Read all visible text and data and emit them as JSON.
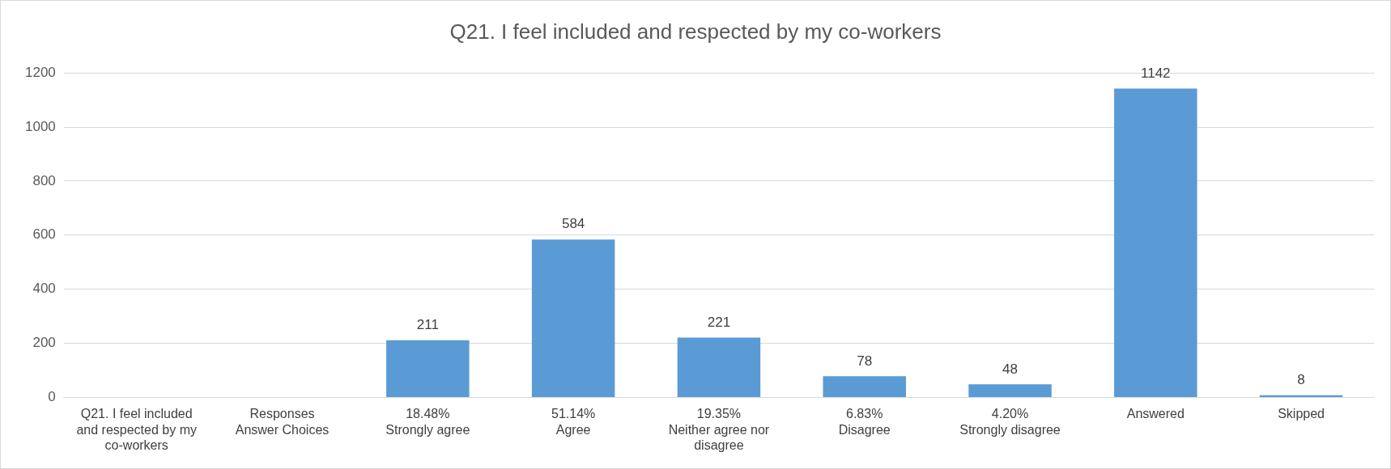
{
  "chart_data": {
    "type": "bar",
    "title": "Q21. I feel included and respected by my co-workers",
    "categories": [
      "Q21. I feel included and respected by my co-workers",
      "Responses\nAnswer Choices",
      "18.48%\nStrongly agree",
      "51.14%\nAgree",
      "19.35%\nNeither agree nor disagree",
      "6.83%\nDisagree",
      "4.20%\nStrongly disagree",
      "Answered",
      "Skipped"
    ],
    "values": [
      null,
      null,
      211,
      584,
      221,
      78,
      48,
      1142,
      8
    ],
    "color": "#5b9bd5",
    "ylim": [
      0,
      1200
    ],
    "yticks": [
      0,
      200,
      400,
      600,
      800,
      1000,
      1200
    ],
    "grid": "y",
    "data_labels": true
  }
}
